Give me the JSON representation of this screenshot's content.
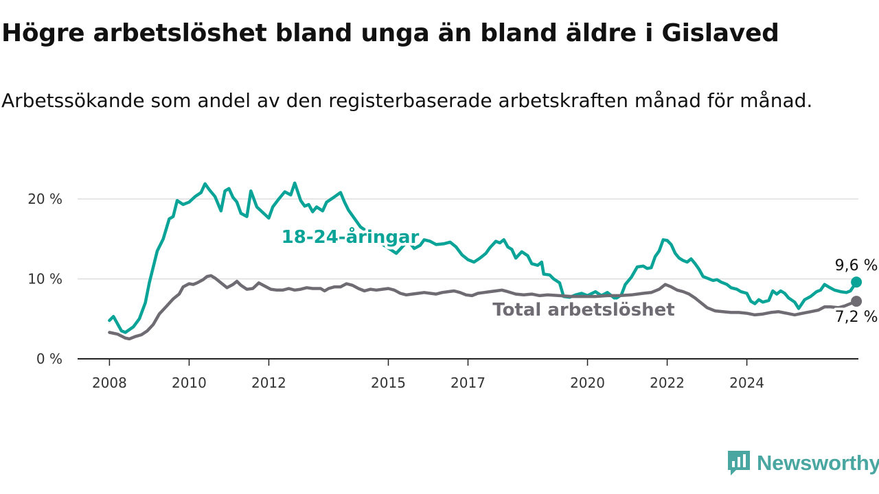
{
  "title": "Högre arbetslöshet bland unga än bland äldre i Gislaved",
  "subtitle": "Arbetssökande som andel av den registerbaserade arbetskraften månad för månad.",
  "brand": {
    "name": "Newsworthy",
    "icon": "newsworthy-logo-icon",
    "color": "#4aa6a0"
  },
  "chart_data": {
    "type": "line",
    "x_unit": "year",
    "xlim": [
      2007.85,
      2026.8
    ],
    "ylim": [
      0,
      23
    ],
    "x_ticks": [
      {
        "value": 2008,
        "label": "2008"
      },
      {
        "value": 2010,
        "label": "2010"
      },
      {
        "value": 2012,
        "label": "2012"
      },
      {
        "value": 2015,
        "label": "2015"
      },
      {
        "value": 2017,
        "label": "2017"
      },
      {
        "value": 2020,
        "label": "2020"
      },
      {
        "value": 2022,
        "label": "2022"
      },
      {
        "value": 2024,
        "label": "2024"
      }
    ],
    "y_ticks": [
      {
        "value": 0,
        "label": "0 %"
      },
      {
        "value": 10,
        "label": "10 %"
      },
      {
        "value": 20,
        "label": "20 %"
      }
    ],
    "grid": "horizontal",
    "series": [
      {
        "name": "18-24-åringar",
        "color": "#0aa398",
        "end_label": "9,6 %",
        "points": [
          [
            2008.0,
            4.8
          ],
          [
            2008.1,
            5.3
          ],
          [
            2008.3,
            3.5
          ],
          [
            2008.4,
            3.3
          ],
          [
            2008.6,
            4.0
          ],
          [
            2008.75,
            5.0
          ],
          [
            2008.9,
            7.0
          ],
          [
            2009.0,
            9.5
          ],
          [
            2009.2,
            13.5
          ],
          [
            2009.35,
            15.0
          ],
          [
            2009.5,
            17.5
          ],
          [
            2009.6,
            17.8
          ],
          [
            2009.7,
            19.8
          ],
          [
            2009.85,
            19.3
          ],
          [
            2010.0,
            19.6
          ],
          [
            2010.15,
            20.3
          ],
          [
            2010.3,
            20.8
          ],
          [
            2010.4,
            21.9
          ],
          [
            2010.5,
            21.2
          ],
          [
            2010.65,
            20.3
          ],
          [
            2010.8,
            18.5
          ],
          [
            2010.9,
            21.0
          ],
          [
            2011.0,
            21.3
          ],
          [
            2011.1,
            20.2
          ],
          [
            2011.2,
            19.6
          ],
          [
            2011.3,
            18.2
          ],
          [
            2011.45,
            17.8
          ],
          [
            2011.55,
            21.0
          ],
          [
            2011.7,
            19.0
          ],
          [
            2011.85,
            18.3
          ],
          [
            2012.0,
            17.6
          ],
          [
            2012.1,
            19.0
          ],
          [
            2012.25,
            20.0
          ],
          [
            2012.4,
            20.9
          ],
          [
            2012.55,
            20.5
          ],
          [
            2012.65,
            22.0
          ],
          [
            2012.8,
            19.8
          ],
          [
            2012.9,
            19.1
          ],
          [
            2013.0,
            19.3
          ],
          [
            2013.1,
            18.4
          ],
          [
            2013.2,
            19.0
          ],
          [
            2013.35,
            18.5
          ],
          [
            2013.45,
            19.6
          ],
          [
            2013.6,
            20.1
          ],
          [
            2013.8,
            20.8
          ],
          [
            2013.9,
            19.6
          ],
          [
            2014.0,
            18.6
          ],
          [
            2014.3,
            16.5
          ],
          [
            2014.6,
            15.5
          ],
          [
            2014.8,
            14.5
          ],
          [
            2015.2,
            13.2
          ],
          [
            2015.5,
            14.8
          ],
          [
            2015.65,
            13.8
          ],
          [
            2015.8,
            14.2
          ],
          [
            2015.9,
            14.9
          ],
          [
            2016.05,
            14.7
          ],
          [
            2016.2,
            14.3
          ],
          [
            2016.4,
            14.4
          ],
          [
            2016.55,
            14.6
          ],
          [
            2016.7,
            14.0
          ],
          [
            2016.85,
            13.0
          ],
          [
            2017.0,
            12.4
          ],
          [
            2017.15,
            12.1
          ],
          [
            2017.3,
            12.6
          ],
          [
            2017.45,
            13.2
          ],
          [
            2017.55,
            13.9
          ],
          [
            2017.7,
            14.7
          ],
          [
            2017.8,
            14.5
          ],
          [
            2017.9,
            14.9
          ],
          [
            2018.0,
            14.0
          ],
          [
            2018.1,
            13.7
          ],
          [
            2018.2,
            12.6
          ],
          [
            2018.35,
            13.4
          ],
          [
            2018.5,
            12.9
          ],
          [
            2018.6,
            11.9
          ],
          [
            2018.75,
            11.7
          ],
          [
            2018.85,
            12.1
          ],
          [
            2018.9,
            10.6
          ],
          [
            2019.05,
            10.5
          ],
          [
            2019.15,
            10.0
          ],
          [
            2019.3,
            9.5
          ],
          [
            2019.4,
            7.8
          ],
          [
            2019.55,
            7.7
          ],
          [
            2019.7,
            8.0
          ],
          [
            2019.85,
            8.2
          ],
          [
            2020.0,
            7.9
          ],
          [
            2020.2,
            8.4
          ],
          [
            2020.35,
            7.9
          ],
          [
            2020.5,
            8.3
          ],
          [
            2020.7,
            7.5
          ],
          [
            2020.85,
            8.0
          ],
          [
            2020.95,
            9.3
          ],
          [
            2021.1,
            10.2
          ],
          [
            2021.25,
            11.5
          ],
          [
            2021.4,
            11.6
          ],
          [
            2021.5,
            11.3
          ],
          [
            2021.6,
            11.4
          ],
          [
            2021.7,
            12.8
          ],
          [
            2021.8,
            13.5
          ],
          [
            2021.9,
            14.9
          ],
          [
            2022.0,
            14.8
          ],
          [
            2022.1,
            14.3
          ],
          [
            2022.2,
            13.2
          ],
          [
            2022.3,
            12.6
          ],
          [
            2022.4,
            12.3
          ],
          [
            2022.5,
            12.1
          ],
          [
            2022.6,
            12.5
          ],
          [
            2022.7,
            11.9
          ],
          [
            2022.8,
            11.2
          ],
          [
            2022.9,
            10.3
          ],
          [
            2023.0,
            10.1
          ],
          [
            2023.15,
            9.8
          ],
          [
            2023.25,
            9.9
          ],
          [
            2023.35,
            9.6
          ],
          [
            2023.5,
            9.3
          ],
          [
            2023.6,
            8.9
          ],
          [
            2023.75,
            8.7
          ],
          [
            2023.85,
            8.4
          ],
          [
            2024.0,
            8.2
          ],
          [
            2024.1,
            7.2
          ],
          [
            2024.2,
            6.9
          ],
          [
            2024.3,
            7.4
          ],
          [
            2024.4,
            7.1
          ],
          [
            2024.55,
            7.3
          ],
          [
            2024.65,
            8.5
          ],
          [
            2024.75,
            8.1
          ],
          [
            2024.85,
            8.5
          ],
          [
            2024.95,
            8.2
          ],
          [
            2025.05,
            7.6
          ],
          [
            2025.2,
            7.1
          ],
          [
            2025.3,
            6.3
          ],
          [
            2025.45,
            7.4
          ],
          [
            2025.6,
            7.8
          ],
          [
            2025.75,
            8.4
          ],
          [
            2025.85,
            8.6
          ],
          [
            2025.95,
            9.3
          ],
          [
            2026.05,
            9.0
          ],
          [
            2026.2,
            8.6
          ],
          [
            2026.35,
            8.4
          ],
          [
            2026.5,
            8.3
          ],
          [
            2026.6,
            8.5
          ],
          [
            2026.75,
            9.6
          ]
        ]
      },
      {
        "name": "Total arbetslöshet",
        "color": "#6f6b73",
        "end_label": "7,2 %",
        "points": [
          [
            2008.0,
            3.3
          ],
          [
            2008.2,
            3.1
          ],
          [
            2008.4,
            2.6
          ],
          [
            2008.5,
            2.5
          ],
          [
            2008.65,
            2.8
          ],
          [
            2008.8,
            3.0
          ],
          [
            2008.95,
            3.5
          ],
          [
            2009.1,
            4.3
          ],
          [
            2009.25,
            5.6
          ],
          [
            2009.4,
            6.4
          ],
          [
            2009.6,
            7.5
          ],
          [
            2009.75,
            8.1
          ],
          [
            2009.85,
            9.0
          ],
          [
            2010.0,
            9.4
          ],
          [
            2010.1,
            9.3
          ],
          [
            2010.2,
            9.5
          ],
          [
            2010.35,
            9.9
          ],
          [
            2010.45,
            10.3
          ],
          [
            2010.55,
            10.4
          ],
          [
            2010.65,
            10.1
          ],
          [
            2010.8,
            9.5
          ],
          [
            2010.95,
            8.9
          ],
          [
            2011.1,
            9.3
          ],
          [
            2011.2,
            9.7
          ],
          [
            2011.3,
            9.2
          ],
          [
            2011.45,
            8.7
          ],
          [
            2011.6,
            8.8
          ],
          [
            2011.75,
            9.5
          ],
          [
            2011.9,
            9.1
          ],
          [
            2012.05,
            8.7
          ],
          [
            2012.2,
            8.6
          ],
          [
            2012.35,
            8.6
          ],
          [
            2012.5,
            8.8
          ],
          [
            2012.65,
            8.6
          ],
          [
            2012.8,
            8.7
          ],
          [
            2012.95,
            8.9
          ],
          [
            2013.1,
            8.8
          ],
          [
            2013.3,
            8.8
          ],
          [
            2013.4,
            8.5
          ],
          [
            2013.5,
            8.8
          ],
          [
            2013.65,
            9.0
          ],
          [
            2013.8,
            9.0
          ],
          [
            2013.95,
            9.4
          ],
          [
            2014.1,
            9.2
          ],
          [
            2014.25,
            8.8
          ],
          [
            2014.4,
            8.5
          ],
          [
            2014.55,
            8.7
          ],
          [
            2014.7,
            8.6
          ],
          [
            2014.85,
            8.7
          ],
          [
            2015.0,
            8.8
          ],
          [
            2015.15,
            8.6
          ],
          [
            2015.3,
            8.2
          ],
          [
            2015.45,
            8.0
          ],
          [
            2015.6,
            8.1
          ],
          [
            2015.75,
            8.2
          ],
          [
            2015.9,
            8.3
          ],
          [
            2016.05,
            8.2
          ],
          [
            2016.2,
            8.1
          ],
          [
            2016.35,
            8.3
          ],
          [
            2016.5,
            8.4
          ],
          [
            2016.65,
            8.5
          ],
          [
            2016.8,
            8.3
          ],
          [
            2016.95,
            8.0
          ],
          [
            2017.1,
            7.9
          ],
          [
            2017.25,
            8.2
          ],
          [
            2017.4,
            8.3
          ],
          [
            2017.55,
            8.4
          ],
          [
            2017.7,
            8.5
          ],
          [
            2017.85,
            8.6
          ],
          [
            2018.0,
            8.4
          ],
          [
            2018.2,
            8.1
          ],
          [
            2018.4,
            8.0
          ],
          [
            2018.6,
            8.1
          ],
          [
            2018.8,
            7.9
          ],
          [
            2019.0,
            8.0
          ],
          [
            2019.3,
            7.9
          ],
          [
            2019.6,
            7.8
          ],
          [
            2019.9,
            7.8
          ],
          [
            2020.2,
            7.8
          ],
          [
            2020.5,
            7.9
          ],
          [
            2020.8,
            7.9
          ],
          [
            2021.1,
            8.0
          ],
          [
            2021.4,
            8.2
          ],
          [
            2021.6,
            8.3
          ],
          [
            2021.8,
            8.7
          ],
          [
            2021.95,
            9.3
          ],
          [
            2022.1,
            9.0
          ],
          [
            2022.25,
            8.6
          ],
          [
            2022.4,
            8.4
          ],
          [
            2022.55,
            8.1
          ],
          [
            2022.7,
            7.6
          ],
          [
            2022.85,
            7.0
          ],
          [
            2023.0,
            6.4
          ],
          [
            2023.2,
            6.0
          ],
          [
            2023.4,
            5.9
          ],
          [
            2023.6,
            5.8
          ],
          [
            2023.8,
            5.8
          ],
          [
            2024.0,
            5.7
          ],
          [
            2024.2,
            5.5
          ],
          [
            2024.4,
            5.6
          ],
          [
            2024.6,
            5.8
          ],
          [
            2024.8,
            5.9
          ],
          [
            2025.0,
            5.7
          ],
          [
            2025.2,
            5.5
          ],
          [
            2025.4,
            5.7
          ],
          [
            2025.6,
            5.9
          ],
          [
            2025.8,
            6.1
          ],
          [
            2025.95,
            6.5
          ],
          [
            2026.1,
            6.5
          ],
          [
            2026.3,
            6.4
          ],
          [
            2026.45,
            6.6
          ],
          [
            2026.6,
            6.9
          ],
          [
            2026.75,
            7.2
          ]
        ]
      }
    ]
  }
}
